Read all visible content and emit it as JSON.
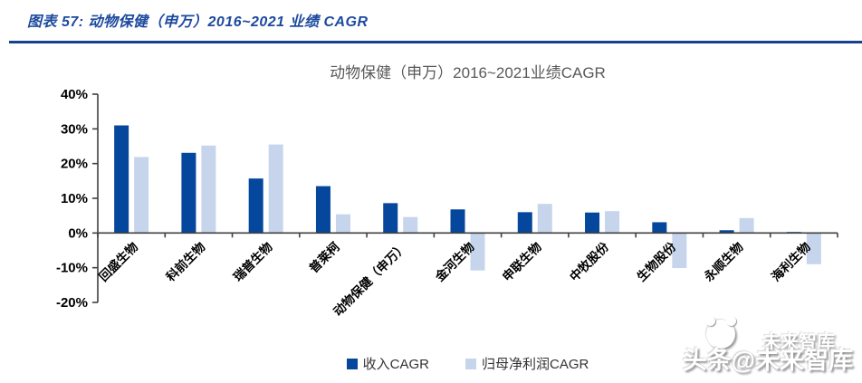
{
  "header": {
    "caption": "图表 57:  动物保健（申万）2016~2021 业绩 CAGR"
  },
  "colors": {
    "caption_blue": "#1d4a9e",
    "rule_blue": "#16418c",
    "axis_gray": "#404040",
    "title_gray": "#595959"
  },
  "chart_data": {
    "type": "bar",
    "title": "动物保健（申万）2016~2021业绩CAGR",
    "categories": [
      "回盛生物",
      "科前生物",
      "瑞普生物",
      "普莱柯",
      "动物保健（申万）",
      "金河生物",
      "申联生物",
      "中牧股份",
      "生物股份",
      "永顺生物",
      "海利生物"
    ],
    "series": [
      {
        "name": "收入CAGR",
        "color": "#04479c",
        "values": [
          31.0,
          23.1,
          15.7,
          13.5,
          8.6,
          6.8,
          6.0,
          5.9,
          3.1,
          0.8,
          0.3
        ]
      },
      {
        "name": "归母净利润CAGR",
        "color": "#c6d5ec",
        "values": [
          21.9,
          25.2,
          25.5,
          5.4,
          4.6,
          -10.8,
          8.4,
          6.3,
          -10.1,
          4.3,
          -9.0
        ]
      }
    ],
    "ylim": [
      -20,
      40
    ],
    "ytick_step": 10,
    "ytick_format": "percent",
    "xlabel": "",
    "ylabel": "",
    "grid": false,
    "legend_position": "bottom"
  },
  "watermark": {
    "small_text": "未来智库",
    "large_text": "头条@未来智库"
  }
}
